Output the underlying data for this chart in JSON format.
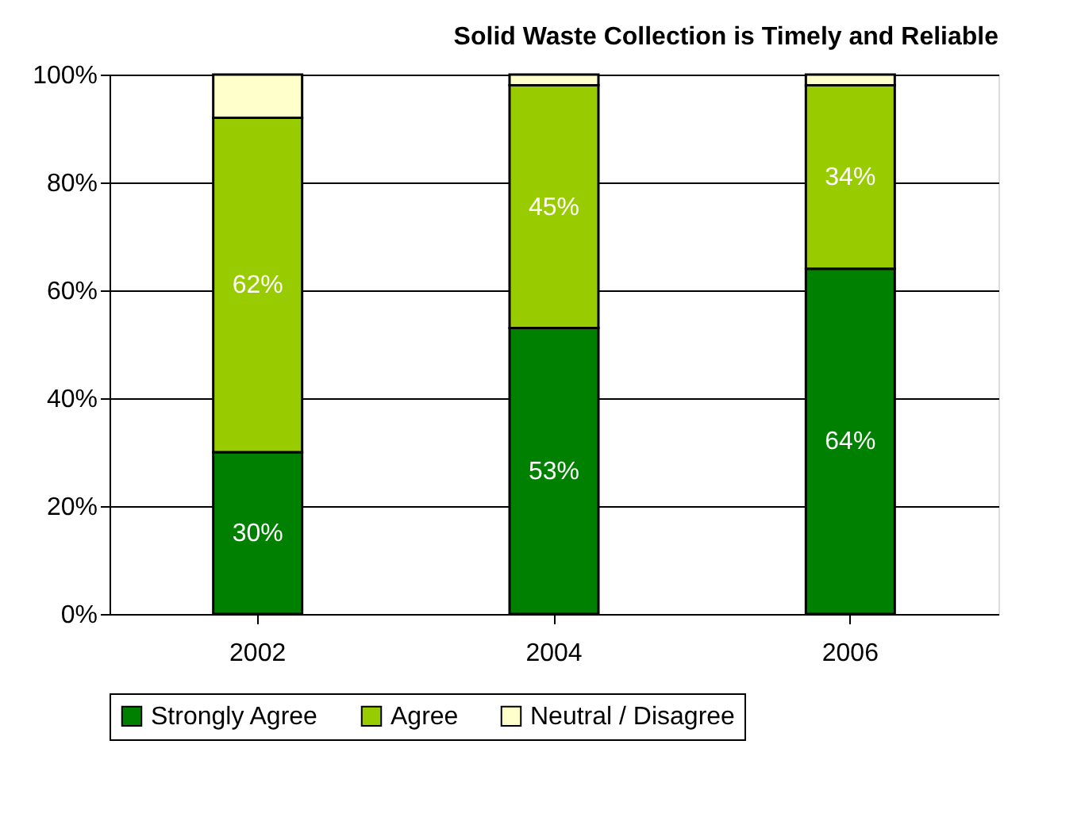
{
  "chart_data": {
    "type": "bar",
    "title": "Solid Waste Collection is Timely and Reliable",
    "stacked": true,
    "categories": [
      "2002",
      "2004",
      "2006"
    ],
    "series": [
      {
        "name": "Strongly Agree",
        "color": "#008000",
        "values": [
          30,
          53,
          64
        ],
        "value_labels": [
          "30%",
          "53%",
          "64%"
        ]
      },
      {
        "name": "Agree",
        "color": "#99cc00",
        "values": [
          62,
          45,
          34
        ],
        "value_labels": [
          "62%",
          "45%",
          "34%"
        ]
      },
      {
        "name": "Neutral / Disagree",
        "color": "#ffffcc",
        "values": [
          8,
          2,
          2
        ]
      }
    ],
    "ylim": [
      0,
      100
    ],
    "yticks": [
      {
        "value": 0,
        "label": "0%"
      },
      {
        "value": 20,
        "label": "20%"
      },
      {
        "value": 40,
        "label": "40%"
      },
      {
        "value": 60,
        "label": "60%"
      },
      {
        "value": 80,
        "label": "80%"
      },
      {
        "value": 100,
        "label": "100%"
      }
    ],
    "grid": "y",
    "legend": "bottom"
  }
}
